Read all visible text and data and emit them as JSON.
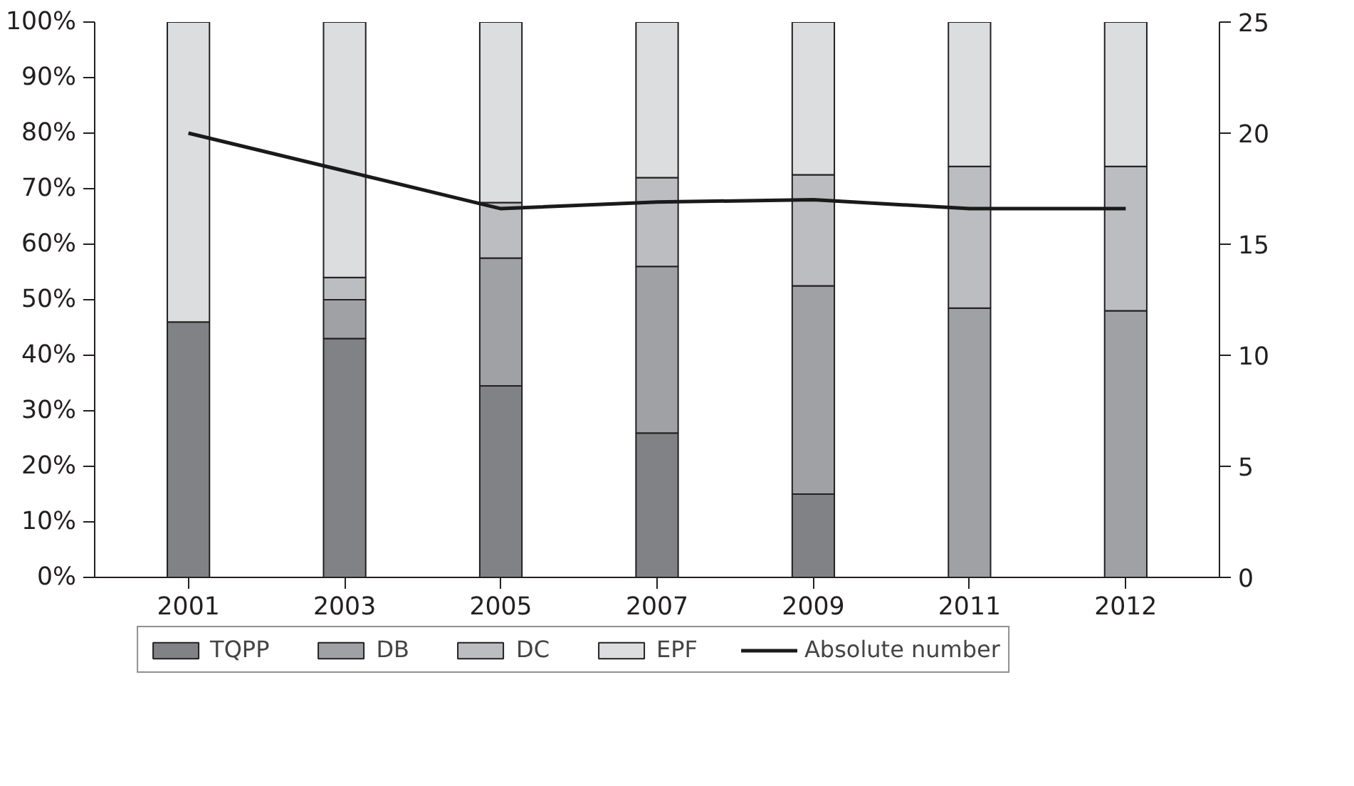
{
  "chart_data": {
    "type": "bar",
    "stacked": true,
    "categories": [
      "2001",
      "2003",
      "2005",
      "2007",
      "2009",
      "2011",
      "2012"
    ],
    "series": [
      {
        "name": "TQPP",
        "color": "#818285",
        "values": [
          46,
          43,
          34.5,
          26,
          15,
          0,
          0
        ]
      },
      {
        "name": "DB",
        "color": "#a0a1a5",
        "values": [
          0,
          7,
          23,
          30,
          37.5,
          48.5,
          48
        ]
      },
      {
        "name": "DC",
        "color": "#bcbdc1",
        "values": [
          0,
          4,
          10,
          16,
          20,
          25.5,
          26
        ]
      },
      {
        "name": "EPF",
        "color": "#dcdddf",
        "values": [
          54,
          46,
          32.5,
          28,
          27.5,
          26,
          26
        ]
      },
      {
        "name": "Absolute number",
        "type": "line",
        "axis": "y2",
        "color": "#1a1a1a",
        "values": [
          20,
          18.3,
          16.6,
          16.9,
          17,
          16.6,
          16.6
        ]
      }
    ],
    "ylim": [
      0,
      100
    ],
    "yticks": [
      {
        "value": 0,
        "label": "0%"
      },
      {
        "value": 10,
        "label": "10%"
      },
      {
        "value": 20,
        "label": "20%"
      },
      {
        "value": 30,
        "label": "30%"
      },
      {
        "value": 40,
        "label": "40%"
      },
      {
        "value": 50,
        "label": "50%"
      },
      {
        "value": 60,
        "label": "60%"
      },
      {
        "value": 70,
        "label": "70%"
      },
      {
        "value": 80,
        "label": "80%"
      },
      {
        "value": 90,
        "label": "90%"
      },
      {
        "value": 100,
        "label": "100%"
      }
    ],
    "y2lim": [
      0,
      25
    ],
    "y2ticks": [
      0,
      5,
      10,
      15,
      20,
      25
    ],
    "grid": false,
    "legend": "bottom",
    "line_style": "solid"
  }
}
